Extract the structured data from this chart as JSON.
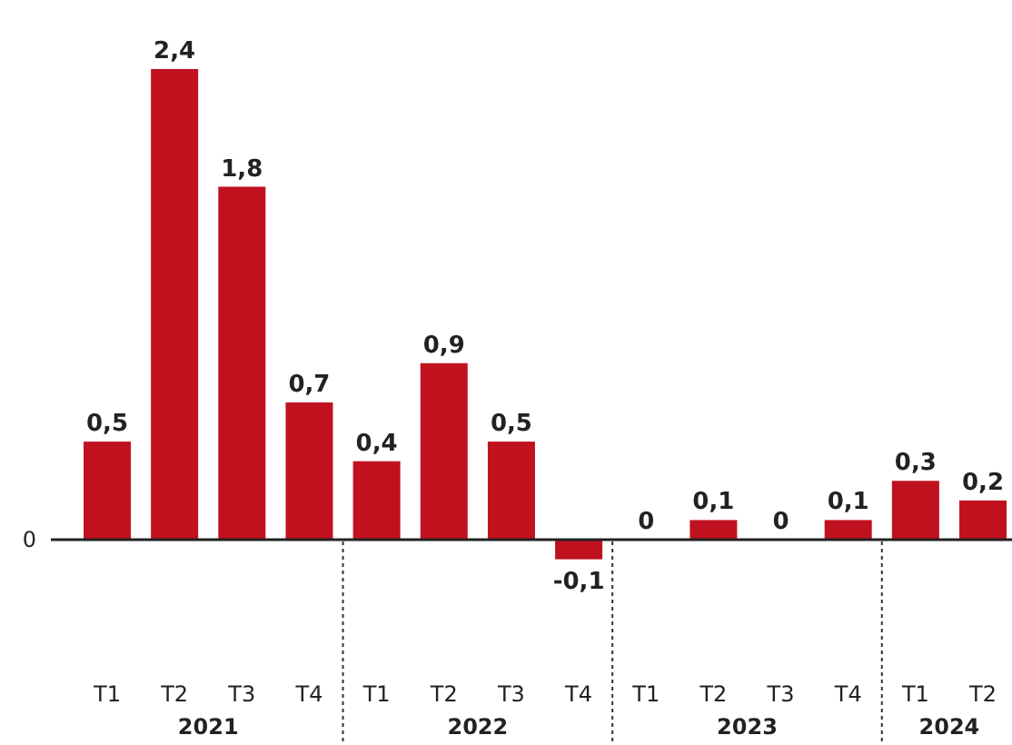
{
  "chart_data": {
    "type": "bar",
    "categories": [
      "T1",
      "T2",
      "T3",
      "T4",
      "T1",
      "T2",
      "T3",
      "T4",
      "T1",
      "T2",
      "T3",
      "T4",
      "T1",
      "T2"
    ],
    "values": [
      0.5,
      2.4,
      1.8,
      0.7,
      0.4,
      0.9,
      0.5,
      -0.1,
      0,
      0.1,
      0,
      0.1,
      0.3,
      0.2
    ],
    "value_labels": [
      "0,5",
      "2,4",
      "1,8",
      "0,7",
      "0,4",
      "0,9",
      "0,5",
      "-0,1",
      "0",
      "0,1",
      "0",
      "0,1",
      "0,3",
      "0,2"
    ],
    "color": "#c0111f",
    "annotations": [
      "2021",
      "2022",
      "2023",
      "2024",
      "0"
    ]
  }
}
